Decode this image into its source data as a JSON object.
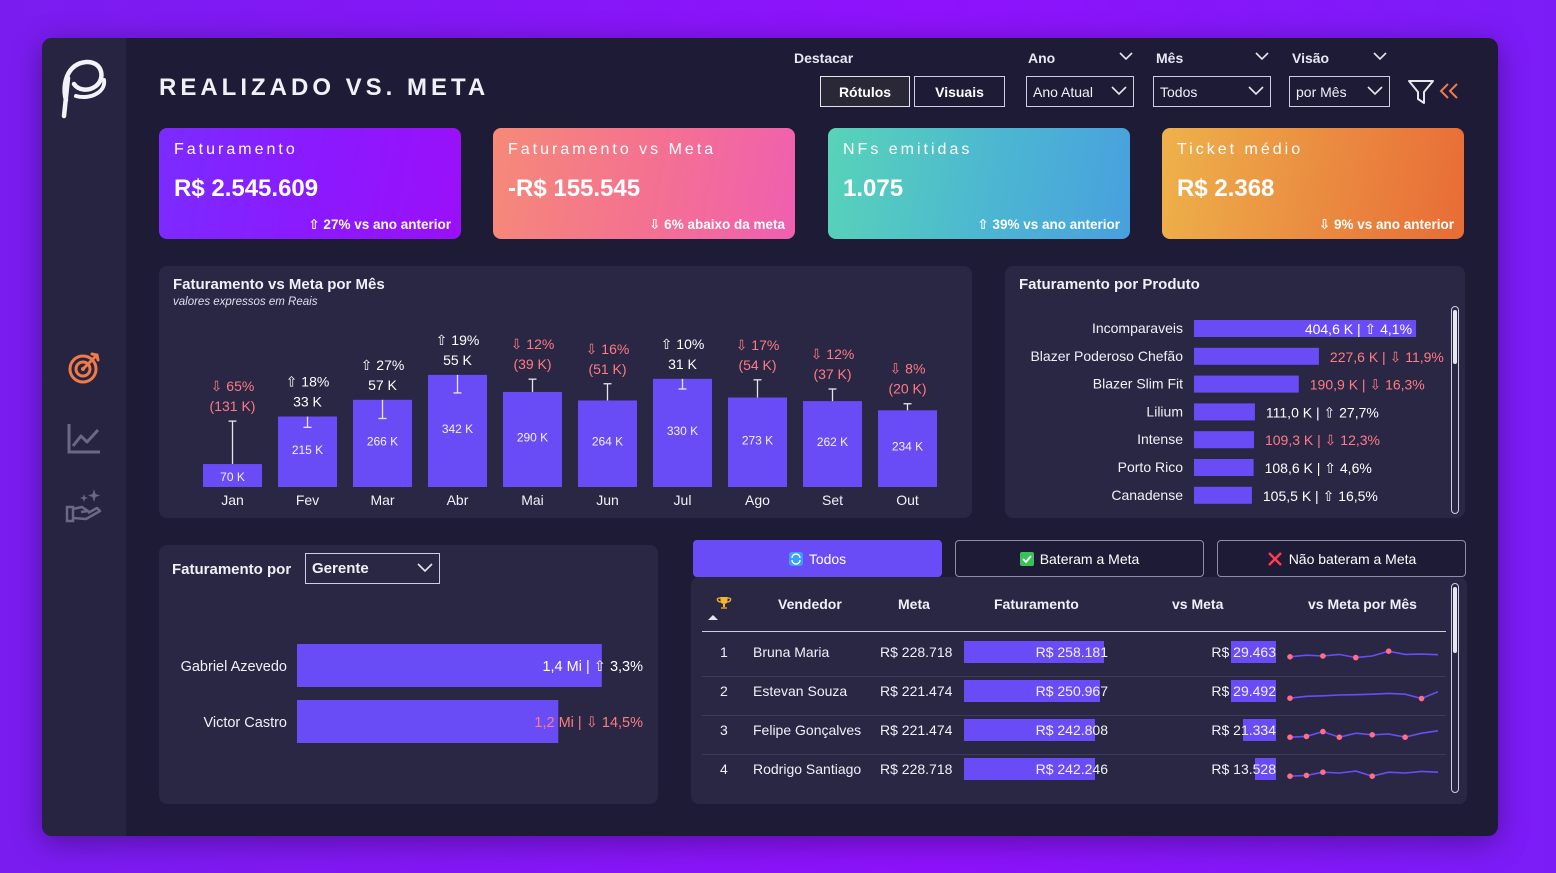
{
  "header": {
    "title": "REALIZADO VS. META",
    "destacar_label": "Destacar",
    "destacar_options": [
      "Rótulos",
      "Visuais"
    ],
    "ano_label": "Ano",
    "ano_value": "Ano Atual",
    "mes_label": "Mês",
    "mes_value": "Todos",
    "visao_label": "Visão",
    "visao_value": "por Mês"
  },
  "kpis": [
    {
      "title": "Faturamento",
      "value": "R$ 2.545.609",
      "delta": "⇧ 27% vs ano anterior"
    },
    {
      "title": "Faturamento vs Meta",
      "value": "-R$ 155.545",
      "delta": "⇩ 6% abaixo da meta"
    },
    {
      "title": "NFs emitidas",
      "value": "1.075",
      "delta": "⇧ 39% vs ano anterior"
    },
    {
      "title": "Ticket médio",
      "value": "R$ 2.368",
      "delta": "⇩ 9% vs ano anterior"
    }
  ],
  "monthly": {
    "title": "Faturamento vs Meta por Mês",
    "subtitle": "valores expressos em Reais",
    "chart_data": {
      "type": "bar",
      "categories": [
        "Jan",
        "Fev",
        "Mar",
        "Abr",
        "Mai",
        "Jun",
        "Jul",
        "Ago",
        "Set",
        "Out"
      ],
      "values": [
        70,
        215,
        266,
        342,
        290,
        264,
        330,
        273,
        262,
        234
      ],
      "value_labels": [
        "70 K",
        "215 K",
        "266 K",
        "342 K",
        "290 K",
        "264 K",
        "330 K",
        "273 K",
        "262 K",
        "234 K"
      ],
      "meta": [
        201,
        182,
        209,
        287,
        329,
        315,
        299,
        327,
        299,
        254
      ],
      "pct_labels": [
        "⇩ 65%",
        "⇧ 18%",
        "⇧ 27%",
        "⇧ 19%",
        "⇩ 12%",
        "⇩ 16%",
        "⇧ 10%",
        "⇩ 17%",
        "⇩ 12%",
        "⇩ 8%"
      ],
      "diff_labels": [
        "(131 K)",
        "33 K",
        "57 K",
        "55 K",
        "(39 K)",
        "(51 K)",
        "31 K",
        "(54 K)",
        "(37 K)",
        "(20 K)"
      ],
      "positive": [
        false,
        true,
        true,
        true,
        false,
        false,
        true,
        false,
        false,
        false
      ],
      "ylim": [
        0,
        360
      ]
    }
  },
  "produto": {
    "title": "Faturamento por Produto",
    "chart_data": {
      "type": "bar",
      "categories": [
        "Incomparaveis",
        "Blazer Poderoso Chefão",
        "Blazer Slim Fit",
        "Lilium",
        "Intense",
        "Porto Rico",
        "Canadense"
      ],
      "values": [
        404.6,
        227.6,
        190.9,
        111.0,
        109.3,
        108.6,
        105.5
      ],
      "labels": [
        "404,6 K | ⇧ 4,1%",
        "227,6 K | ⇩ 11,9%",
        "190,9 K | ⇩ 16,3%",
        "111,0 K | ⇧ 27,7%",
        "109,3 K | ⇩ 12,3%",
        "108,6 K | ⇧ 4,6%",
        "105,5 K | ⇧ 16,5%"
      ],
      "positive": [
        true,
        false,
        false,
        true,
        false,
        true,
        true
      ],
      "xlim": [
        0,
        430
      ]
    }
  },
  "gerente": {
    "label": "Faturamento por",
    "dropdown": "Gerente",
    "chart_data": {
      "type": "bar",
      "categories": [
        "Gabriel Azevedo",
        "Victor Castro"
      ],
      "values": [
        1.4,
        1.2
      ],
      "labels": [
        "1,4 Mi | ⇧ 3,3%",
        "1,2 Mi | ⇩ 14,5%"
      ],
      "positive": [
        true,
        false
      ],
      "xlim": [
        0,
        1.58
      ]
    }
  },
  "vendedores": {
    "tabs": [
      "Todos",
      "Bateram a Meta",
      "Não bateram a Meta"
    ],
    "columns": [
      "Vendedor",
      "Meta",
      "Faturamento",
      "vs Meta",
      "vs Meta por Mês"
    ],
    "rows": [
      {
        "rank": "1",
        "name": "Bruna Maria",
        "meta": "R$ 228.718",
        "fat": "R$ 258.181",
        "fat_v": 258181,
        "vs": "R$ 29.463",
        "vs_v": 29463,
        "spark": [
          0.45,
          0.55,
          0.5,
          0.6,
          0.4,
          0.5,
          0.8,
          0.6,
          0.62,
          0.58
        ],
        "spark_pts": [
          0,
          2,
          4,
          6
        ]
      },
      {
        "rank": "2",
        "name": "Estevan Souza",
        "meta": "R$ 221.474",
        "fat": "R$ 250.967",
        "fat_v": 250967,
        "vs": "R$ 29.492",
        "vs_v": 29492,
        "spark": [
          0.3,
          0.42,
          0.45,
          0.5,
          0.52,
          0.55,
          0.6,
          0.55,
          0.28,
          0.7
        ],
        "spark_pts": [
          0,
          8
        ]
      },
      {
        "rank": "3",
        "name": "Felipe Gonçalves",
        "meta": "R$ 221.474",
        "fat": "R$ 242.808",
        "fat_v": 242808,
        "vs": "R$ 21.334",
        "vs_v": 21334,
        "spark": [
          0.3,
          0.35,
          0.65,
          0.3,
          0.55,
          0.45,
          0.5,
          0.3,
          0.55,
          0.7
        ],
        "spark_pts": [
          0,
          1,
          2,
          3,
          5,
          7
        ]
      },
      {
        "rank": "4",
        "name": "Rodrigo Santiago",
        "meta": "R$ 228.718",
        "fat": "R$ 242.246",
        "fat_v": 242246,
        "vs": "R$ 13.528",
        "vs_v": 13528,
        "spark": [
          0.3,
          0.35,
          0.55,
          0.5,
          0.62,
          0.3,
          0.55,
          0.5,
          0.6,
          0.55
        ],
        "spark_pts": [
          0,
          1,
          2,
          5
        ]
      }
    ]
  },
  "colors": {
    "bar": "#6a4cf7",
    "positive_text": "#ffffff",
    "negative_text": "#ff7b84",
    "spark_point": "#ff6e84",
    "spark_line": "#6a4cf7"
  }
}
